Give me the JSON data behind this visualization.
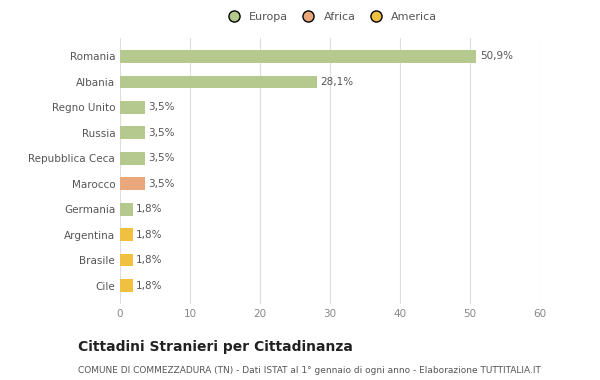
{
  "categories": [
    "Romania",
    "Albania",
    "Regno Unito",
    "Russia",
    "Repubblica Ceca",
    "Marocco",
    "Germania",
    "Argentina",
    "Brasile",
    "Cile"
  ],
  "values": [
    50.9,
    28.1,
    3.5,
    3.5,
    3.5,
    3.5,
    1.8,
    1.8,
    1.8,
    1.8
  ],
  "labels": [
    "50,9%",
    "28,1%",
    "3,5%",
    "3,5%",
    "3,5%",
    "3,5%",
    "1,8%",
    "1,8%",
    "1,8%",
    "1,8%"
  ],
  "colors": [
    "#b5c98e",
    "#b5c98e",
    "#b5c98e",
    "#b5c98e",
    "#b5c98e",
    "#e8a87c",
    "#b5c98e",
    "#f0c040",
    "#f0c040",
    "#f0c040"
  ],
  "legend": [
    {
      "label": "Europa",
      "color": "#b5c98e"
    },
    {
      "label": "Africa",
      "color": "#e8a87c"
    },
    {
      "label": "America",
      "color": "#f0c040"
    }
  ],
  "xlim": [
    0,
    60
  ],
  "xticks": [
    0,
    10,
    20,
    30,
    40,
    50,
    60
  ],
  "title": "Cittadini Stranieri per Cittadinanza",
  "subtitle": "COMUNE DI COMMEZZADURA (TN) - Dati ISTAT al 1° gennaio di ogni anno - Elaborazione TUTTITALIA.IT",
  "background_color": "#ffffff",
  "grid_color": "#dddddd",
  "bar_height": 0.5,
  "label_fontsize": 7.5,
  "ytick_fontsize": 7.5,
  "xtick_fontsize": 7.5,
  "legend_fontsize": 8,
  "title_fontsize": 10,
  "subtitle_fontsize": 6.5
}
